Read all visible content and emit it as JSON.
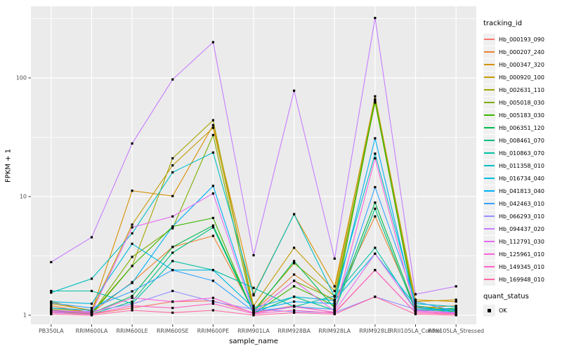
{
  "figure": {
    "background": "#FFFFFF",
    "panel_background": "#EBEBEB",
    "grid_color": "#FFFFFF",
    "tick_color": "#333333",
    "axis_text_color": "#4D4D4D",
    "point_color": "#000000",
    "legend_key_background": "#F0F0F0"
  },
  "axes": {
    "x_title": "sample_name",
    "y_title": "FPKM + 1"
  },
  "legend": {
    "tracking_title": "tracking_id",
    "quant_title": "quant_status",
    "quant_ok_label": "OK"
  },
  "chart_data": {
    "type": "line",
    "title": "",
    "xlabel": "sample_name",
    "ylabel": "FPKM + 1",
    "y_scale": "log10",
    "ylim": [
      0.84,
      400
    ],
    "y_major_ticks": [
      1,
      10,
      100
    ],
    "y_minor_ticks": [
      3.1623,
      31.623,
      316.23
    ],
    "grid": true,
    "legend_position": "right",
    "point_marker": "black-square (quant_status = OK)",
    "categories": [
      "PB350LA",
      "RRIM600LA",
      "RRIM600LE",
      "RRIM600SE",
      "RRIM600PE",
      "RRIM901LA",
      "RRIM928BA",
      "RRIM928LA",
      "RRIM928LE",
      "RRII105LA_Control",
      "RRII105LA_Stressed"
    ],
    "series": [
      {
        "name": "Hb_000193_090",
        "color": "#F8766D",
        "values": [
          1.1,
          1.02,
          1.15,
          1.3,
          1.32,
          1.05,
          1.2,
          1.05,
          2.4,
          1.05,
          1.02
        ]
      },
      {
        "name": "Hb_000207_240",
        "color": "#EA8331",
        "values": [
          1.2,
          1.05,
          1.9,
          3.76,
          4.66,
          1.08,
          2.2,
          1.3,
          6.8,
          1.15,
          1.2
        ]
      },
      {
        "name": "Hb_000347_320",
        "color": "#D89000",
        "values": [
          1.3,
          1.08,
          11.2,
          10.1,
          40.0,
          1.5,
          7.1,
          1.75,
          65.0,
          1.35,
          1.3
        ]
      },
      {
        "name": "Hb_000920_100",
        "color": "#C49A00",
        "values": [
          1.25,
          1.1,
          5.8,
          18.3,
          38.0,
          1.2,
          3.7,
          1.6,
          70.0,
          1.3,
          1.35
        ]
      },
      {
        "name": "Hb_002631_110",
        "color": "#A3A500",
        "values": [
          1.15,
          1.05,
          2.6,
          21.0,
          44.0,
          1.1,
          2.74,
          1.45,
          62.0,
          1.2,
          1.1
        ]
      },
      {
        "name": "Hb_005018_030",
        "color": "#7CAE00",
        "values": [
          1.12,
          1.03,
          3.1,
          5.4,
          33.0,
          1.05,
          1.95,
          1.35,
          66.0,
          1.18,
          1.12
        ]
      },
      {
        "name": "Hb_005183_030",
        "color": "#39B600",
        "values": [
          1.08,
          1.02,
          2.6,
          5.6,
          6.6,
          1.03,
          1.75,
          1.2,
          64.0,
          1.1,
          1.08
        ]
      },
      {
        "name": "Hb_006351_120",
        "color": "#00BB4E",
        "values": [
          1.1,
          1.04,
          1.45,
          3.76,
          5.7,
          1.06,
          2.86,
          1.15,
          8.9,
          1.12,
          1.1
        ]
      },
      {
        "name": "Hb_008461_070",
        "color": "#00BF7D",
        "values": [
          1.05,
          1.02,
          1.3,
          3.36,
          5.5,
          1.04,
          1.43,
          1.1,
          7.9,
          1.08,
          1.15
        ]
      },
      {
        "name": "Hb_010863_070",
        "color": "#00C1A3",
        "values": [
          1.6,
          1.6,
          1.25,
          2.86,
          2.4,
          1.7,
          1.18,
          1.45,
          3.7,
          1.1,
          1.12
        ]
      },
      {
        "name": "Hb_011358_010",
        "color": "#00BFC4",
        "values": [
          1.55,
          2.03,
          4.9,
          16.0,
          23.5,
          1.47,
          7.1,
          1.43,
          23.0,
          1.25,
          1.18
        ]
      },
      {
        "name": "Hb_016734_040",
        "color": "#00BAE0",
        "values": [
          1.3,
          1.25,
          4.0,
          2.4,
          2.4,
          1.15,
          1.43,
          1.33,
          3.3,
          1.2,
          1.05
        ]
      },
      {
        "name": "Hb_041813_040",
        "color": "#00B0F6",
        "values": [
          1.15,
          1.1,
          1.87,
          5.6,
          12.3,
          1.1,
          1.3,
          1.25,
          31.0,
          1.15,
          1.1
        ]
      },
      {
        "name": "Hb_042463_010",
        "color": "#35A2FF",
        "values": [
          1.27,
          1.15,
          1.59,
          2.4,
          1.95,
          1.08,
          1.18,
          1.12,
          12.0,
          1.3,
          1.08
        ]
      },
      {
        "name": "Hb_066293_010",
        "color": "#9590FF",
        "values": [
          1.05,
          1.08,
          1.24,
          1.6,
          1.3,
          1.12,
          1.07,
          1.05,
          1.43,
          1.12,
          1.05
        ]
      },
      {
        "name": "Hb_094437_020",
        "color": "#C77CFF",
        "values": [
          2.8,
          4.54,
          28.0,
          97.0,
          200.0,
          3.2,
          78.0,
          3.0,
          320.0,
          1.5,
          1.75
        ]
      },
      {
        "name": "Hb_112791_030",
        "color": "#E76BF3",
        "values": [
          1.1,
          1.06,
          5.5,
          6.8,
          10.6,
          1.05,
          1.95,
          1.08,
          3.3,
          1.1,
          1.02
        ]
      },
      {
        "name": "Hb_125961_010",
        "color": "#FA62DB",
        "values": [
          1.08,
          1.04,
          1.4,
          1.3,
          1.4,
          1.04,
          1.18,
          1.06,
          21.0,
          1.08,
          1.04
        ]
      },
      {
        "name": "Hb_149345_010",
        "color": "#FF61C9",
        "values": [
          1.05,
          1.02,
          1.2,
          1.15,
          1.25,
          1.03,
          1.1,
          1.04,
          2.4,
          1.05,
          1.03
        ]
      },
      {
        "name": "Hb_169948_010",
        "color": "#FF67A4",
        "values": [
          1.02,
          1.0,
          1.1,
          1.05,
          1.1,
          1.0,
          1.05,
          1.02,
          1.43,
          1.02,
          1.0
        ]
      }
    ]
  }
}
